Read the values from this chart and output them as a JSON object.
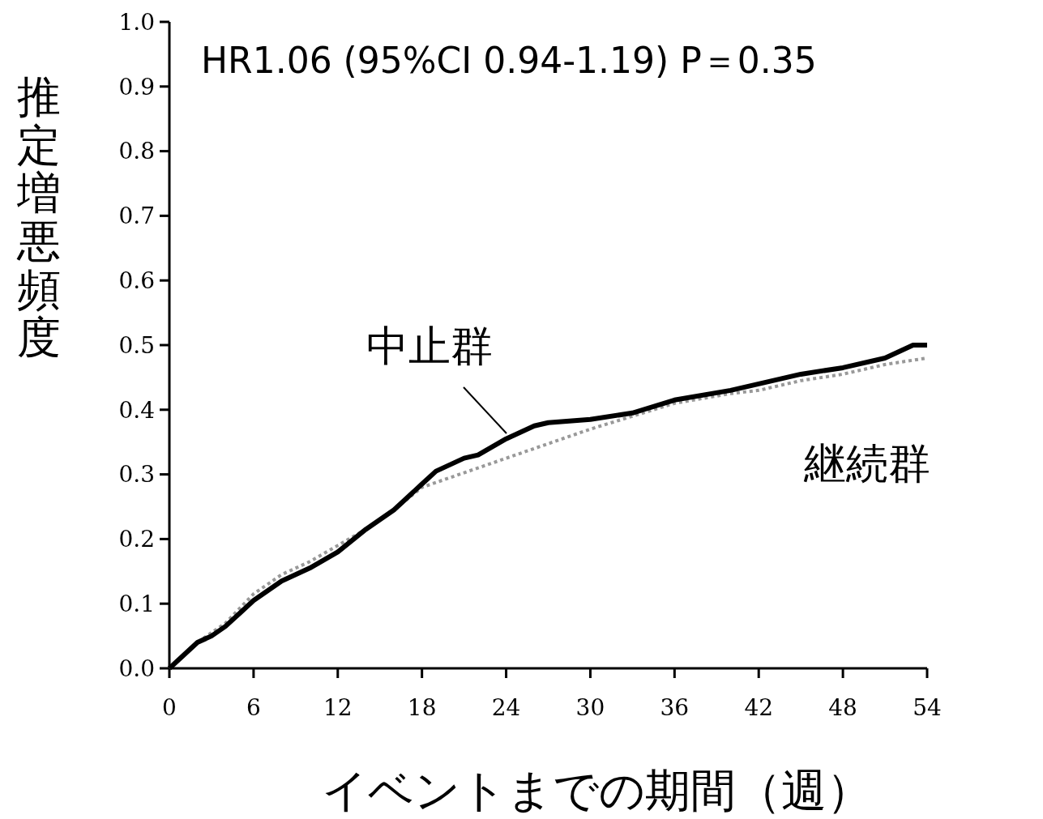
{
  "chart_data": {
    "type": "line",
    "xlabel": "イベントまでの期間（週）",
    "ylabel": "推定増悪頻度",
    "annotations": [
      "HR1.06 (95%CI 0.94-1.19) P＝0.35"
    ],
    "xlim": [
      0,
      54
    ],
    "xticks": [
      0,
      6,
      12,
      18,
      24,
      30,
      36,
      42,
      48,
      54
    ],
    "ylim": [
      0,
      1
    ],
    "yticks": [
      {
        "value": 0,
        "label": "0.0"
      },
      {
        "value": 0.1,
        "label": "0.1"
      },
      {
        "value": 0.2,
        "label": "0.2"
      },
      {
        "value": 0.3,
        "label": "0.3"
      },
      {
        "value": 0.4,
        "label": "0.4"
      },
      {
        "value": 0.5,
        "label": "0.5"
      },
      {
        "value": 0.6,
        "label": "0.6"
      },
      {
        "value": 0.7,
        "label": "0.7"
      },
      {
        "value": 0.8,
        "label": "0.8"
      },
      {
        "value": 0.9,
        "label": "0.9"
      },
      {
        "value": 1,
        "label": "1.0"
      }
    ],
    "grid": false,
    "series": [
      {
        "name": "中止群",
        "color": "#000000",
        "line_style": "solid",
        "x": [
          0,
          1,
          2,
          3,
          4,
          5,
          6,
          8,
          10,
          12,
          14,
          16,
          18,
          19,
          20,
          21,
          22,
          24,
          25,
          26,
          27,
          30,
          33,
          36,
          40,
          42,
          45,
          48,
          51,
          53,
          54
        ],
        "values": [
          0,
          0.02,
          0.04,
          0.05,
          0.065,
          0.085,
          0.105,
          0.135,
          0.155,
          0.18,
          0.215,
          0.245,
          0.285,
          0.305,
          0.315,
          0.325,
          0.33,
          0.355,
          0.365,
          0.375,
          0.38,
          0.385,
          0.395,
          0.415,
          0.43,
          0.44,
          0.455,
          0.465,
          0.48,
          0.5,
          0.5
        ]
      },
      {
        "name": "継続群",
        "color": "#999999",
        "line_style": "dotted",
        "x": [
          0,
          2,
          4,
          6,
          8,
          10,
          12,
          14,
          16,
          18,
          20,
          22,
          24,
          26,
          28,
          30,
          33,
          36,
          40,
          42,
          45,
          48,
          51,
          54
        ],
        "values": [
          0,
          0.04,
          0.07,
          0.115,
          0.145,
          0.165,
          0.19,
          0.215,
          0.245,
          0.28,
          0.295,
          0.31,
          0.325,
          0.34,
          0.355,
          0.37,
          0.39,
          0.41,
          0.425,
          0.43,
          0.445,
          0.455,
          0.47,
          0.48
        ]
      }
    ]
  }
}
